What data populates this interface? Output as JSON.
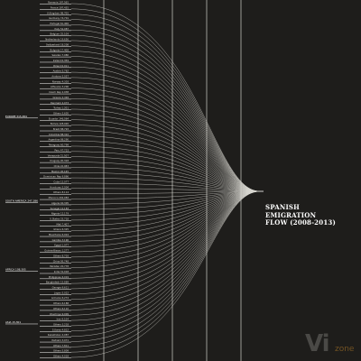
{
  "chart_data": {
    "type": "flow",
    "title_lines": [
      "SPANISH",
      "EMIGRATION",
      "FLOW (2008-2013)"
    ],
    "regions": [
      {
        "name": "EUROPE 315,384",
        "after_index": 21
      },
      {
        "name": "SOUTH AMERICA 247,386",
        "after_index": 37
      },
      {
        "name": "AFRICA 108,305",
        "after_index": 50
      },
      {
        "name": "ASIA 15,301",
        "after_index": 60
      }
    ],
    "countries": [
      "Romania 197,565",
      "France 197,435",
      "U.Kingdom 98,705",
      "Germany 74,701",
      "Portugal 61,406",
      "Italy 52,087",
      "Belgium 25,109",
      "Netherlands 19,656",
      "Switzerland 18,208",
      "Bulgaria 17,408",
      "Sweden 7,980",
      "Ireland 6,359",
      "Poland 6,011",
      "Austria 5,762",
      "Andorra 5,057",
      "Norway 4,303",
      "Lithuania 3,206",
      "Czech Rep 2,938",
      "Greece 2,494",
      "Denmark 2,073",
      "Turkey 1,201",
      "Others 5,605",
      "Ecuador 146,064",
      "Bolivia 128,920",
      "Brazil 88,793",
      "Colombia 88,322",
      "Argentina 88,290",
      "Paraguay 60,799",
      "Peru 47,723",
      "Venezuela 21,507",
      "Uruguay 20,318",
      "Chile 22,083",
      "Mexico 26,165",
      "Dominican Rep 9,896",
      "Cuba 12,077",
      "Honduras 5,004",
      "Others 8,114",
      "Morocco 202,083",
      "Algeria 40,305",
      "Senegal 12,183",
      "Nigeria 12,179",
      "U.States 25,718",
      "Mali 7,407",
      "Ghana 6,325",
      "Mauritania 6,924",
      "Gambia 3,196",
      "Egypt 1,977",
      "Guinea-Bissau 1,277",
      "Others 8,703",
      "China 95,748",
      "Pakistan 20,778",
      "India 31,018",
      "Philippines 6,019",
      "Bangladesh 15,889",
      "Georgia 9,611",
      "Japan 5,022",
      "Armenia 6,274",
      "Others 6,188",
      "Others 6,110",
      "Chechnya 9,009",
      "Iran 9,104",
      "Others 3,218",
      "S.Korea 4,812",
      "Kazakhstan 4,087",
      "Vietnam 3,071",
      "Others 7,811",
      "Others 5,809",
      "Others 4,018"
    ],
    "xlabel": "",
    "ylabel": ""
  },
  "watermark": {
    "big": "Vi",
    "small": "zone"
  }
}
